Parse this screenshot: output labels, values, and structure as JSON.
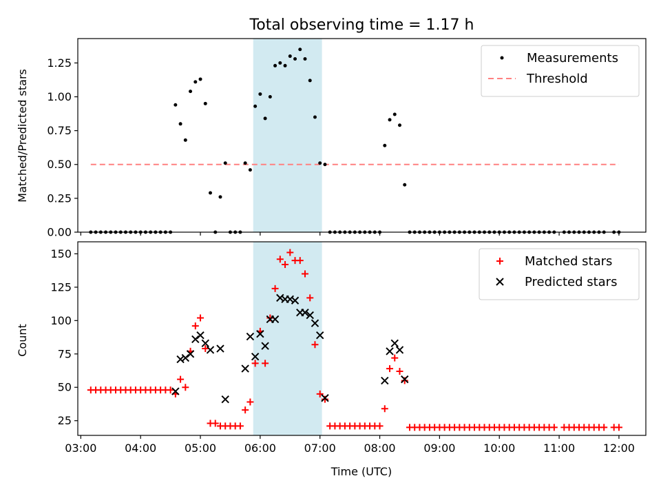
{
  "figure": {
    "title": "Total observing time = 1.17 h",
    "xlabel": "Time (UTC)",
    "x_ticks": [
      "03:00",
      "04:00",
      "05:00",
      "06:00",
      "07:00",
      "08:00",
      "09:00",
      "10:00",
      "11:00",
      "12:00"
    ],
    "highlight_color": "#add8e6",
    "legend_placement": "top-right"
  },
  "chart_data": [
    {
      "type": "scatter",
      "ylabel": "Matched/Predicted stars",
      "xlim": [
        "02:57",
        "12:27"
      ],
      "ylim": [
        0,
        1.43
      ],
      "y_ticks": [
        0.0,
        0.25,
        0.5,
        0.75,
        1.0,
        1.25
      ],
      "y_tick_labels": [
        "0.00",
        "0.25",
        "0.50",
        "0.75",
        "1.00",
        "1.25"
      ],
      "highlight_span": [
        "05:53",
        "07:02"
      ],
      "threshold": {
        "value": 0.5,
        "x_range": [
          "03:10",
          "12:00"
        ]
      },
      "series": [
        {
          "name": "Measurements",
          "color": "#000000",
          "marker": "dot",
          "points": [
            [
              "03:10",
              0
            ],
            [
              "03:15",
              0
            ],
            [
              "03:20",
              0
            ],
            [
              "03:25",
              0
            ],
            [
              "03:30",
              0
            ],
            [
              "03:35",
              0
            ],
            [
              "03:40",
              0
            ],
            [
              "03:45",
              0
            ],
            [
              "03:50",
              0
            ],
            [
              "03:55",
              0
            ],
            [
              "04:00",
              0
            ],
            [
              "04:05",
              0
            ],
            [
              "04:10",
              0
            ],
            [
              "04:15",
              0
            ],
            [
              "04:20",
              0
            ],
            [
              "04:25",
              0
            ],
            [
              "04:30",
              0
            ],
            [
              "04:35",
              0.94
            ],
            [
              "04:40",
              0.8
            ],
            [
              "04:45",
              0.68
            ],
            [
              "04:50",
              1.04
            ],
            [
              "04:55",
              1.11
            ],
            [
              "05:00",
              1.13
            ],
            [
              "05:05",
              0.95
            ],
            [
              "05:10",
              0.29
            ],
            [
              "05:15",
              0
            ],
            [
              "05:20",
              0.26
            ],
            [
              "05:25",
              0.51
            ],
            [
              "05:30",
              0
            ],
            [
              "05:35",
              0
            ],
            [
              "05:40",
              0
            ],
            [
              "05:45",
              0.51
            ],
            [
              "05:50",
              0.46
            ],
            [
              "05:55",
              0.93
            ],
            [
              "06:00",
              1.02
            ],
            [
              "06:05",
              0.84
            ],
            [
              "06:10",
              1.0
            ],
            [
              "06:15",
              1.23
            ],
            [
              "06:20",
              1.25
            ],
            [
              "06:25",
              1.23
            ],
            [
              "06:30",
              1.3
            ],
            [
              "06:35",
              1.28
            ],
            [
              "06:40",
              1.35
            ],
            [
              "06:45",
              1.28
            ],
            [
              "06:50",
              1.12
            ],
            [
              "06:55",
              0.85
            ],
            [
              "07:00",
              0.51
            ],
            [
              "07:05",
              0.5
            ],
            [
              "07:10",
              0
            ],
            [
              "07:15",
              0
            ],
            [
              "07:20",
              0
            ],
            [
              "07:25",
              0
            ],
            [
              "07:30",
              0
            ],
            [
              "07:35",
              0
            ],
            [
              "07:40",
              0
            ],
            [
              "07:45",
              0
            ],
            [
              "07:50",
              0
            ],
            [
              "07:55",
              0
            ],
            [
              "08:00",
              0
            ],
            [
              "08:05",
              0.64
            ],
            [
              "08:10",
              0.83
            ],
            [
              "08:15",
              0.87
            ],
            [
              "08:20",
              0.79
            ],
            [
              "08:25",
              0.35
            ],
            [
              "08:30",
              0
            ],
            [
              "08:35",
              0
            ],
            [
              "08:40",
              0
            ],
            [
              "08:45",
              0
            ],
            [
              "08:50",
              0
            ],
            [
              "08:55",
              0
            ],
            [
              "09:00",
              0
            ],
            [
              "09:05",
              0
            ],
            [
              "09:10",
              0
            ],
            [
              "09:15",
              0
            ],
            [
              "09:20",
              0
            ],
            [
              "09:25",
              0
            ],
            [
              "09:30",
              0
            ],
            [
              "09:35",
              0
            ],
            [
              "09:40",
              0
            ],
            [
              "09:45",
              0
            ],
            [
              "09:50",
              0
            ],
            [
              "09:55",
              0
            ],
            [
              "10:00",
              0
            ],
            [
              "10:05",
              0
            ],
            [
              "10:10",
              0
            ],
            [
              "10:15",
              0
            ],
            [
              "10:20",
              0
            ],
            [
              "10:25",
              0
            ],
            [
              "10:30",
              0
            ],
            [
              "10:35",
              0
            ],
            [
              "10:40",
              0
            ],
            [
              "10:45",
              0
            ],
            [
              "10:50",
              0
            ],
            [
              "10:55",
              0
            ],
            [
              "11:05",
              0
            ],
            [
              "11:10",
              0
            ],
            [
              "11:15",
              0
            ],
            [
              "11:20",
              0
            ],
            [
              "11:25",
              0
            ],
            [
              "11:30",
              0
            ],
            [
              "11:35",
              0
            ],
            [
              "11:40",
              0
            ],
            [
              "11:45",
              0
            ],
            [
              "11:55",
              0
            ],
            [
              "12:00",
              0
            ]
          ]
        },
        {
          "name": "Threshold",
          "color": "#ff8080",
          "style": "dashed"
        }
      ]
    },
    {
      "type": "scatter",
      "ylabel": "Count",
      "xlim": [
        "02:57",
        "12:27"
      ],
      "ylim": [
        14,
        159
      ],
      "y_ticks": [
        25,
        50,
        75,
        100,
        125,
        150
      ],
      "y_tick_labels": [
        "25",
        "50",
        "75",
        "100",
        "125",
        "150"
      ],
      "highlight_span": [
        "05:53",
        "07:02"
      ],
      "series": [
        {
          "name": "Matched stars",
          "color": "#ff0000",
          "marker": "plus",
          "points": [
            [
              "03:10",
              48
            ],
            [
              "03:15",
              48
            ],
            [
              "03:20",
              48
            ],
            [
              "03:25",
              48
            ],
            [
              "03:30",
              48
            ],
            [
              "03:35",
              48
            ],
            [
              "03:40",
              48
            ],
            [
              "03:45",
              48
            ],
            [
              "03:50",
              48
            ],
            [
              "03:55",
              48
            ],
            [
              "04:00",
              48
            ],
            [
              "04:05",
              48
            ],
            [
              "04:10",
              48
            ],
            [
              "04:15",
              48
            ],
            [
              "04:20",
              48
            ],
            [
              "04:25",
              48
            ],
            [
              "04:30",
              48
            ],
            [
              "04:35",
              45
            ],
            [
              "04:40",
              56
            ],
            [
              "04:45",
              50
            ],
            [
              "04:50",
              77
            ],
            [
              "04:55",
              96
            ],
            [
              "05:00",
              102
            ],
            [
              "05:05",
              79
            ],
            [
              "05:10",
              23
            ],
            [
              "05:15",
              23
            ],
            [
              "05:20",
              21
            ],
            [
              "05:25",
              21
            ],
            [
              "05:30",
              21
            ],
            [
              "05:35",
              21
            ],
            [
              "05:40",
              21
            ],
            [
              "05:45",
              33
            ],
            [
              "05:50",
              39
            ],
            [
              "05:55",
              68
            ],
            [
              "06:00",
              92
            ],
            [
              "06:05",
              68
            ],
            [
              "06:10",
              102
            ],
            [
              "06:15",
              124
            ],
            [
              "06:20",
              146
            ],
            [
              "06:25",
              142
            ],
            [
              "06:30",
              151
            ],
            [
              "06:35",
              145
            ],
            [
              "06:40",
              145
            ],
            [
              "06:45",
              135
            ],
            [
              "06:50",
              117
            ],
            [
              "06:55",
              82
            ],
            [
              "07:00",
              45
            ],
            [
              "07:05",
              41
            ],
            [
              "07:10",
              21
            ],
            [
              "07:15",
              21
            ],
            [
              "07:20",
              21
            ],
            [
              "07:25",
              21
            ],
            [
              "07:30",
              21
            ],
            [
              "07:35",
              21
            ],
            [
              "07:40",
              21
            ],
            [
              "07:45",
              21
            ],
            [
              "07:50",
              21
            ],
            [
              "07:55",
              21
            ],
            [
              "08:00",
              21
            ],
            [
              "08:05",
              34
            ],
            [
              "08:10",
              64
            ],
            [
              "08:15",
              72
            ],
            [
              "08:20",
              62
            ],
            [
              "08:25",
              55
            ],
            [
              "08:30",
              20
            ],
            [
              "08:35",
              20
            ],
            [
              "08:40",
              20
            ],
            [
              "08:45",
              20
            ],
            [
              "08:50",
              20
            ],
            [
              "08:55",
              20
            ],
            [
              "09:00",
              20
            ],
            [
              "09:05",
              20
            ],
            [
              "09:10",
              20
            ],
            [
              "09:15",
              20
            ],
            [
              "09:20",
              20
            ],
            [
              "09:25",
              20
            ],
            [
              "09:30",
              20
            ],
            [
              "09:35",
              20
            ],
            [
              "09:40",
              20
            ],
            [
              "09:45",
              20
            ],
            [
              "09:50",
              20
            ],
            [
              "09:55",
              20
            ],
            [
              "10:00",
              20
            ],
            [
              "10:05",
              20
            ],
            [
              "10:10",
              20
            ],
            [
              "10:15",
              20
            ],
            [
              "10:20",
              20
            ],
            [
              "10:25",
              20
            ],
            [
              "10:30",
              20
            ],
            [
              "10:35",
              20
            ],
            [
              "10:40",
              20
            ],
            [
              "10:45",
              20
            ],
            [
              "10:50",
              20
            ],
            [
              "10:55",
              20
            ],
            [
              "11:05",
              20
            ],
            [
              "11:10",
              20
            ],
            [
              "11:15",
              20
            ],
            [
              "11:20",
              20
            ],
            [
              "11:25",
              20
            ],
            [
              "11:30",
              20
            ],
            [
              "11:35",
              20
            ],
            [
              "11:40",
              20
            ],
            [
              "11:45",
              20
            ],
            [
              "11:55",
              20
            ],
            [
              "12:00",
              20
            ]
          ]
        },
        {
          "name": "Predicted stars",
          "color": "#000000",
          "marker": "x",
          "points": [
            [
              "04:35",
              47
            ],
            [
              "04:40",
              71
            ],
            [
              "04:45",
              72
            ],
            [
              "04:50",
              75
            ],
            [
              "04:55",
              86
            ],
            [
              "05:00",
              89
            ],
            [
              "05:05",
              83
            ],
            [
              "05:10",
              78
            ],
            [
              "05:20",
              79
            ],
            [
              "05:25",
              41
            ],
            [
              "05:45",
              64
            ],
            [
              "05:50",
              88
            ],
            [
              "05:55",
              73
            ],
            [
              "06:00",
              90
            ],
            [
              "06:05",
              81
            ],
            [
              "06:10",
              101
            ],
            [
              "06:15",
              101
            ],
            [
              "06:20",
              117
            ],
            [
              "06:25",
              116
            ],
            [
              "06:30",
              116
            ],
            [
              "06:35",
              115
            ],
            [
              "06:40",
              106
            ],
            [
              "06:45",
              106
            ],
            [
              "06:50",
              104
            ],
            [
              "06:55",
              98
            ],
            [
              "07:00",
              89
            ],
            [
              "07:05",
              42
            ],
            [
              "08:05",
              55
            ],
            [
              "08:10",
              77
            ],
            [
              "08:15",
              83
            ],
            [
              "08:20",
              78
            ],
            [
              "08:25",
              56
            ]
          ]
        }
      ]
    }
  ]
}
